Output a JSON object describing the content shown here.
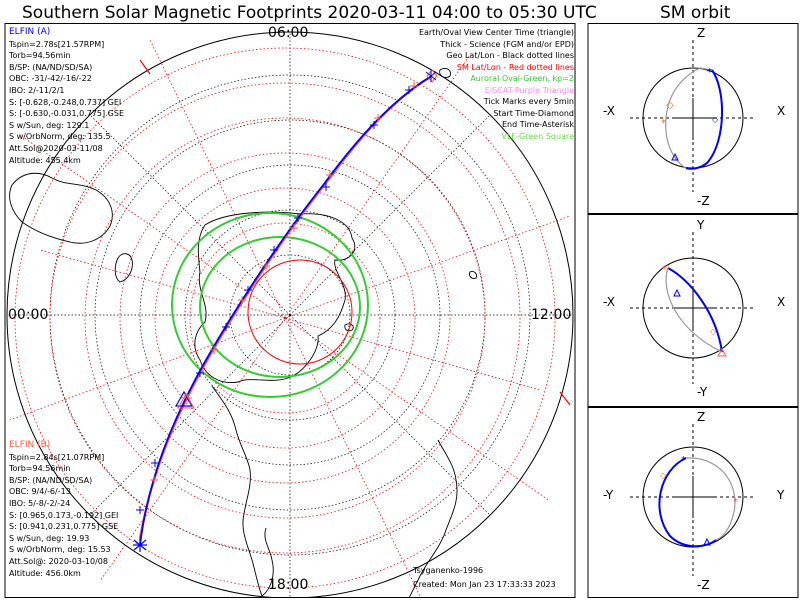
{
  "title": "Southern Solar Magnetic Footprints 2020-03-11 04:00 to 05:30 UTC",
  "orbit_title": "SM orbit",
  "map": {
    "time_labels": {
      "top": "06:00",
      "left": "00:00",
      "right": "12:00",
      "bottom": "18:00"
    }
  },
  "elfin_a": {
    "title": "ELFIN (A)",
    "color": "#0000ff",
    "lines": [
      "Tspin=2.78s[21.57RPM]",
      "Torb=94.56min",
      "B/SP: (NA/ND/SD/SA)",
      "OBC: -31/-42/-16/-22",
      "IBO: 2/-11/2/1",
      "S: [-0.628,-0.248,0.737] GEI",
      "S: [-0.630,-0.031,0.775] GSE",
      "S w/Sun, deg: 129.1",
      "S w/OrbNorm, deg: 135.5",
      "Att.Sol@2020-03-11/08",
      "Altitude: 455.4km"
    ]
  },
  "elfin_b": {
    "title": "ELFIN (B)",
    "color": "#ff5a3c",
    "lines": [
      "Tspin=2.84s[21.07RPM]",
      "Torb=94.56min",
      "B/SP: (NA/ND/SD/SA)",
      "OBC: 9/4/-6/-13",
      "IBO: 5/-8/-2/-24",
      "S: [0.965,0.173,-0.192] GEI",
      "S: [0.941,0.231,0.775] GSE",
      "S w/Sun, deg: 19.93",
      "S w/OrbNorm, deg: 15.53",
      "Att.Sol@: 2020-03-10/08",
      "Altitude: 456.0km"
    ]
  },
  "legend": [
    {
      "text": "Earth/Oval View Center Time (triangle)",
      "color": "#000000"
    },
    {
      "text": "Thick - Science (FGM and/or EPD)",
      "color": "#000000"
    },
    {
      "text": "Geo Lat/Lon - Black dotted lines",
      "color": "#000000"
    },
    {
      "text": "SM Lat/Lon - Red dotted lines",
      "color": "#ff0000"
    },
    {
      "text": "Auroral Oval-Green, kp=2",
      "color": "#33cc33"
    },
    {
      "text": "EISCAT-Purple Triangle",
      "color": "#ff88ff"
    },
    {
      "text": "Tick Marks every 5min",
      "color": "#000000"
    },
    {
      "text": "Start Time-Diamond",
      "color": "#000000"
    },
    {
      "text": "End Time-Asterisk",
      "color": "#000000"
    },
    {
      "text": "VLF-Green Square",
      "color": "#66dd44"
    }
  ],
  "footer": {
    "credit": "Tsyganenko-1996",
    "created": "Created: Mon Jan 23 17:33:33 2023"
  },
  "orbit_panels": [
    {
      "top": "Z",
      "bottom": "-Z",
      "left": "-X",
      "right": "X"
    },
    {
      "top": "Y",
      "bottom": "-Y",
      "left": "-X",
      "right": "X"
    },
    {
      "top": "Z",
      "bottom": "-Z",
      "left": "-Y",
      "right": "Y"
    }
  ],
  "colors": {
    "elfin_a": "#0000ff",
    "elfin_b": "#ff5a3c",
    "oval": "#33cc33",
    "sm_grid": "#ff0000"
  }
}
